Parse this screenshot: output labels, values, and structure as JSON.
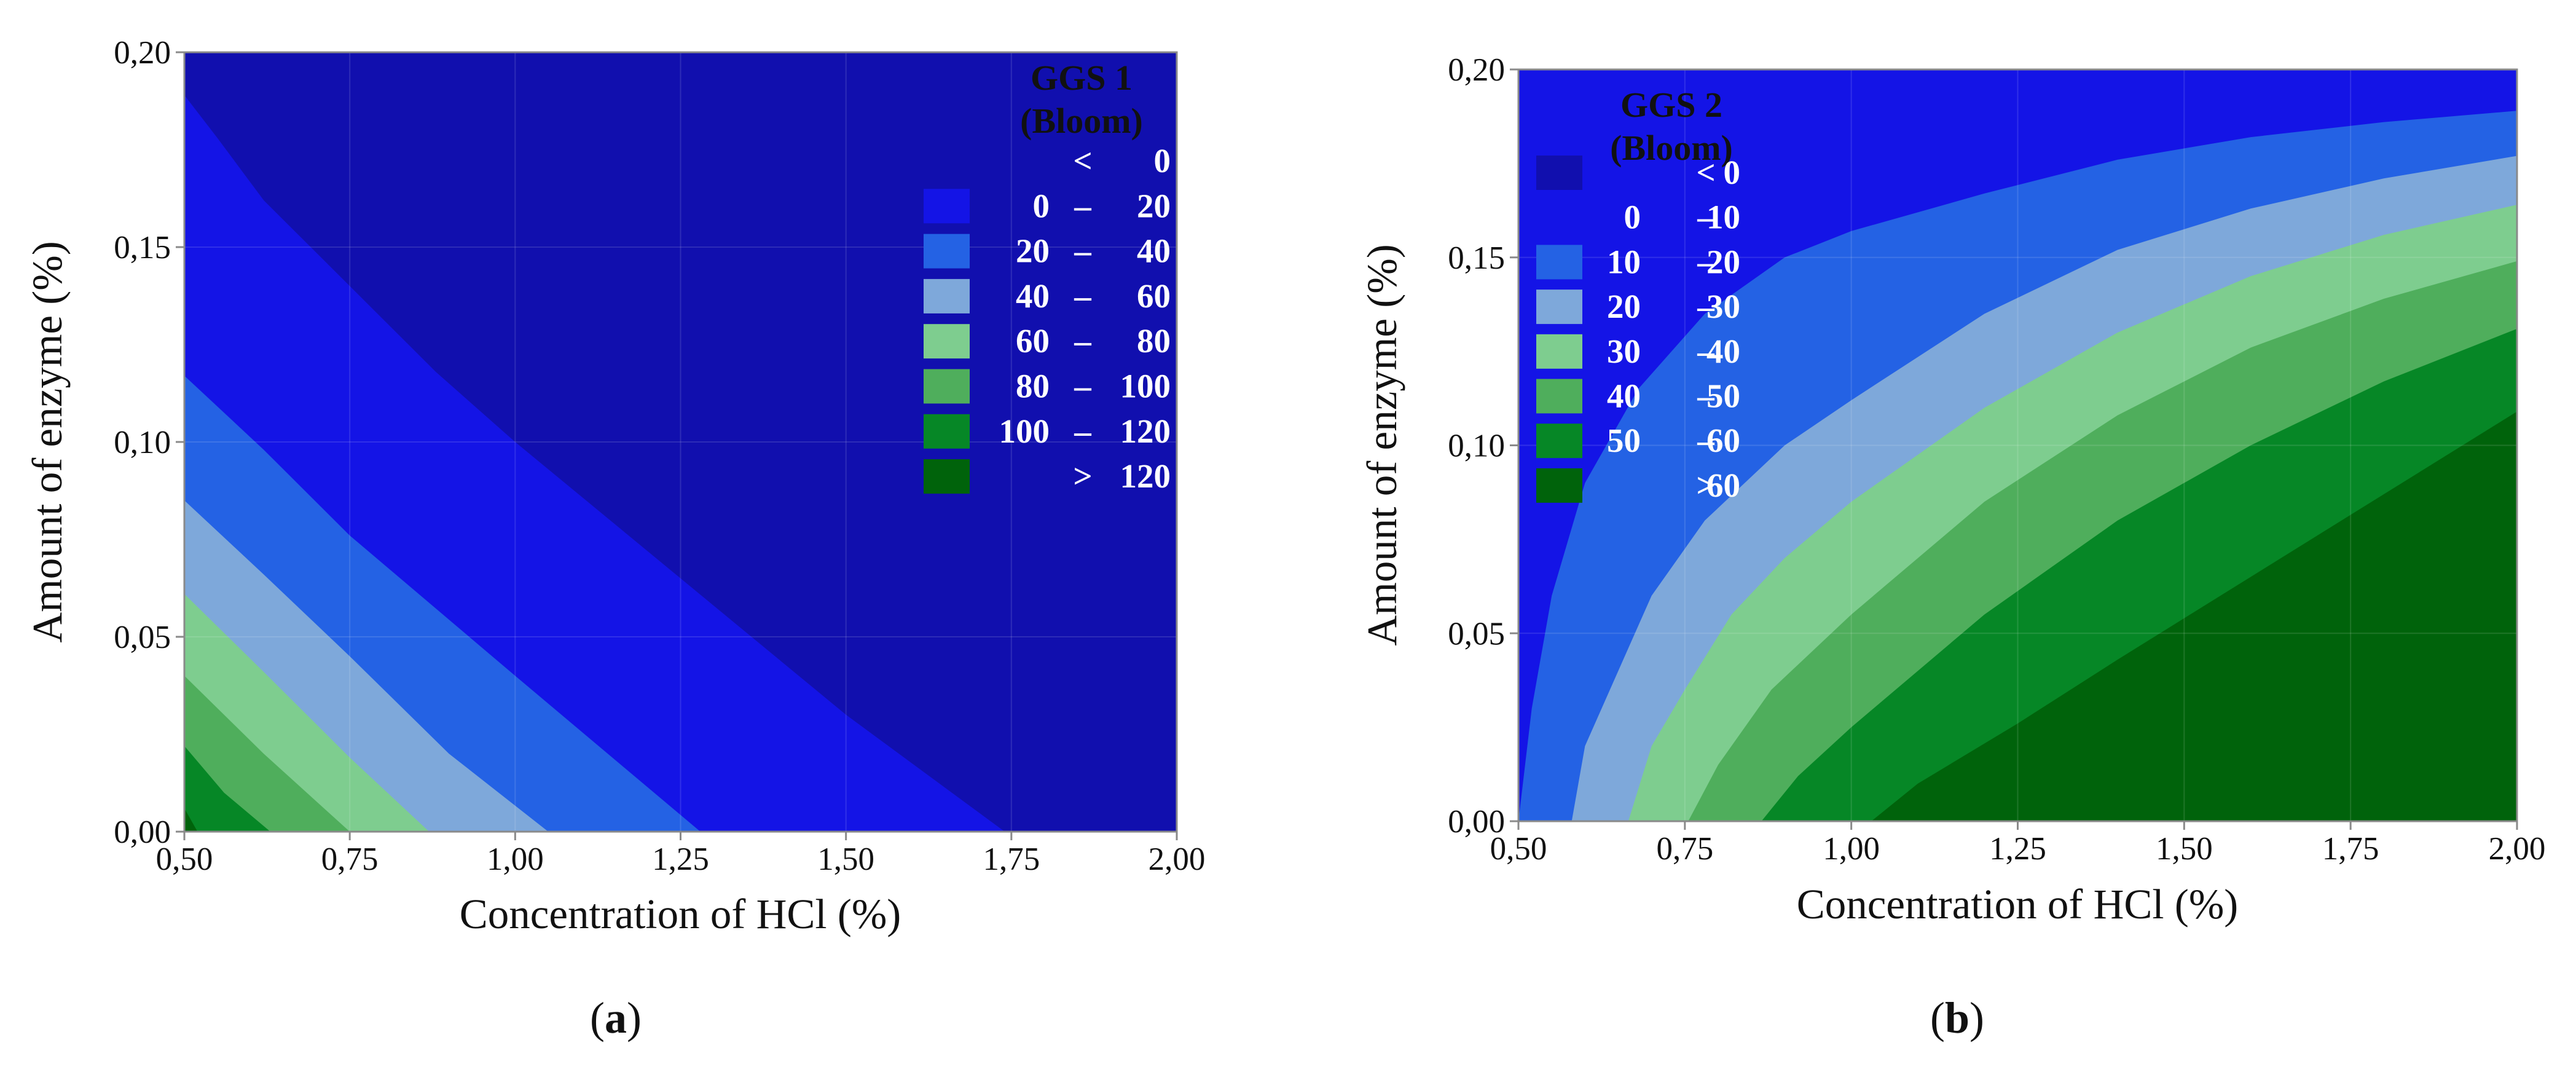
{
  "chart_data": [
    {
      "type": "contour",
      "panel_label": "a",
      "xlabel": "Concentration of HCl (%)",
      "ylabel": "Amount of enzyme (%)",
      "xlim": [
        0.5,
        2.0
      ],
      "ylim": [
        0.0,
        0.2
      ],
      "x_ticks": [
        "0,50",
        "0,75",
        "1,00",
        "1,25",
        "1,50",
        "1,75",
        "2,00"
      ],
      "y_ticks": [
        "0,00",
        "0,05",
        "0,10",
        "0,15",
        "0,20"
      ],
      "grid": true,
      "legend": {
        "title_line1": "GGS 1",
        "title_line2": "(Bloom)",
        "position": "top-right",
        "entries": [
          {
            "label": "<",
            "high": "0",
            "color": "#110fae"
          },
          {
            "low": "0",
            "sep": "–",
            "high": "20",
            "color": "#1414e6"
          },
          {
            "low": "20",
            "sep": "–",
            "high": "40",
            "color": "#2462e4"
          },
          {
            "low": "40",
            "sep": "–",
            "high": "60",
            "color": "#7ea8da"
          },
          {
            "low": "60",
            "sep": "–",
            "high": "80",
            "color": "#7ecd8f"
          },
          {
            "low": "80",
            "sep": "–",
            "high": "100",
            "color": "#4fae5c"
          },
          {
            "low": "100",
            "sep": "–",
            "high": "120",
            "color": "#068726"
          },
          {
            "label": ">",
            "high": "120",
            "color": "#00630b"
          }
        ]
      },
      "region_colors": [
        "#110fae",
        "#1414e6",
        "#2462e4",
        "#7ea8da",
        "#7ecd8f",
        "#4fae5c",
        "#068726",
        "#00630b"
      ],
      "contours": [
        [
          [
            0.5,
            0.189
          ],
          [
            0.55,
            0.178
          ],
          [
            0.62,
            0.162
          ],
          [
            0.75,
            0.14
          ],
          [
            0.88,
            0.118
          ],
          [
            1.0,
            0.1
          ],
          [
            1.25,
            0.065
          ],
          [
            1.5,
            0.03
          ],
          [
            1.74,
            0.0
          ]
        ],
        [
          [
            0.5,
            0.117
          ],
          [
            0.62,
            0.098
          ],
          [
            0.75,
            0.076
          ],
          [
            1.0,
            0.04
          ],
          [
            1.28,
            0.0
          ]
        ],
        [
          [
            0.5,
            0.085
          ],
          [
            0.62,
            0.066
          ],
          [
            0.75,
            0.045
          ],
          [
            0.9,
            0.02
          ],
          [
            1.05,
            0.0
          ]
        ],
        [
          [
            0.5,
            0.061
          ],
          [
            0.62,
            0.041
          ],
          [
            0.75,
            0.019
          ],
          [
            0.87,
            0.0
          ]
        ],
        [
          [
            0.5,
            0.04
          ],
          [
            0.62,
            0.02
          ],
          [
            0.75,
            0.0
          ]
        ],
        [
          [
            0.5,
            0.022
          ],
          [
            0.56,
            0.01
          ],
          [
            0.63,
            0.0
          ]
        ],
        [
          [
            0.5,
            0.006
          ],
          [
            0.52,
            0.0
          ]
        ]
      ]
    },
    {
      "type": "contour",
      "panel_label": "b",
      "xlabel": "Concentration of HCl (%)",
      "ylabel": "Amount of enzyme (%)",
      "xlim": [
        0.5,
        2.0
      ],
      "ylim": [
        0.0,
        0.2
      ],
      "x_ticks": [
        "0,50",
        "0,75",
        "1,00",
        "1,25",
        "1,50",
        "1,75",
        "2,00"
      ],
      "y_ticks": [
        "0,00",
        "0,05",
        "0,10",
        "0,15",
        "0,20"
      ],
      "grid": true,
      "legend": {
        "title_line1": "GGS 2",
        "title_line2": "(Bloom)",
        "position": "top-left",
        "entries": [
          {
            "label": "<",
            "high": "0",
            "color": "#110fae"
          },
          {
            "low": "0",
            "sep": "–",
            "high": "10",
            "color": "#1414e6"
          },
          {
            "low": "10",
            "sep": "–",
            "high": "20",
            "color": "#2462e4"
          },
          {
            "low": "20",
            "sep": "–",
            "high": "30",
            "color": "#7ea8da"
          },
          {
            "low": "30",
            "sep": "–",
            "high": "40",
            "color": "#7ecd8f"
          },
          {
            "low": "40",
            "sep": "–",
            "high": "50",
            "color": "#4fae5c"
          },
          {
            "low": "50",
            "sep": "–",
            "high": "60",
            "color": "#068726"
          },
          {
            "label": ">",
            "high": "60",
            "color": "#00630b"
          }
        ]
      },
      "region_colors": [
        "#1414e6",
        "#2462e4",
        "#7ea8da",
        "#7ecd8f",
        "#4fae5c",
        "#068726",
        "#00630b"
      ],
      "contours": [
        [
          [
            0.5,
            0.0
          ],
          [
            0.52,
            0.03
          ],
          [
            0.55,
            0.06
          ],
          [
            0.6,
            0.09
          ],
          [
            0.68,
            0.115
          ],
          [
            0.78,
            0.135
          ],
          [
            0.9,
            0.15
          ],
          [
            1.0,
            0.157
          ],
          [
            1.2,
            0.167
          ],
          [
            1.4,
            0.176
          ],
          [
            1.6,
            0.182
          ],
          [
            1.8,
            0.186
          ],
          [
            2.0,
            0.189
          ]
        ],
        [
          [
            0.58,
            0.0
          ],
          [
            0.6,
            0.02
          ],
          [
            0.65,
            0.04
          ],
          [
            0.7,
            0.06
          ],
          [
            0.78,
            0.08
          ],
          [
            0.9,
            0.1
          ],
          [
            1.0,
            0.112
          ],
          [
            1.2,
            0.135
          ],
          [
            1.4,
            0.152
          ],
          [
            1.6,
            0.163
          ],
          [
            1.8,
            0.171
          ],
          [
            2.0,
            0.177
          ]
        ],
        [
          [
            0.665,
            0.0
          ],
          [
            0.7,
            0.02
          ],
          [
            0.75,
            0.035
          ],
          [
            0.82,
            0.055
          ],
          [
            0.9,
            0.07
          ],
          [
            1.0,
            0.085
          ],
          [
            1.2,
            0.11
          ],
          [
            1.4,
            0.13
          ],
          [
            1.6,
            0.145
          ],
          [
            1.8,
            0.156
          ],
          [
            2.0,
            0.164
          ]
        ],
        [
          [
            0.755,
            0.0
          ],
          [
            0.8,
            0.015
          ],
          [
            0.88,
            0.035
          ],
          [
            1.0,
            0.055
          ],
          [
            1.2,
            0.085
          ],
          [
            1.4,
            0.108
          ],
          [
            1.6,
            0.126
          ],
          [
            1.8,
            0.139
          ],
          [
            2.0,
            0.149
          ]
        ],
        [
          [
            0.865,
            0.0
          ],
          [
            0.92,
            0.012
          ],
          [
            1.0,
            0.025
          ],
          [
            1.2,
            0.055
          ],
          [
            1.4,
            0.08
          ],
          [
            1.6,
            0.1
          ],
          [
            1.8,
            0.117
          ],
          [
            2.0,
            0.131
          ]
        ],
        [
          [
            1.03,
            0.0
          ],
          [
            1.1,
            0.01
          ],
          [
            1.25,
            0.026
          ],
          [
            1.4,
            0.043
          ],
          [
            1.6,
            0.065
          ],
          [
            1.8,
            0.087
          ],
          [
            2.0,
            0.109
          ]
        ]
      ]
    }
  ]
}
